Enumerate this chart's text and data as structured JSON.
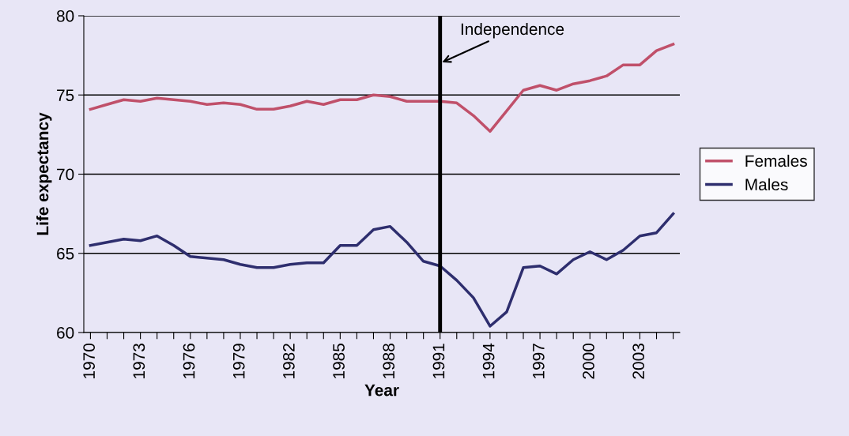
{
  "chart_data": {
    "type": "line",
    "xlabel": "Year",
    "ylabel": "Life expectancy",
    "x": [
      1970,
      1971,
      1972,
      1973,
      1974,
      1975,
      1976,
      1977,
      1978,
      1979,
      1980,
      1981,
      1982,
      1983,
      1984,
      1985,
      1986,
      1987,
      1988,
      1989,
      1990,
      1991,
      1992,
      1993,
      1994,
      1995,
      1996,
      1997,
      1998,
      1999,
      2000,
      2001,
      2002,
      2003,
      2004,
      2005
    ],
    "series": [
      {
        "name": "Females",
        "color": "#c0506a",
        "values": [
          74.1,
          74.4,
          74.7,
          74.6,
          74.8,
          74.7,
          74.6,
          74.4,
          74.5,
          74.4,
          74.1,
          74.1,
          74.3,
          74.6,
          74.4,
          74.7,
          74.7,
          75.0,
          74.9,
          74.6,
          74.6,
          74.6,
          74.5,
          73.7,
          72.7,
          74.0,
          75.3,
          75.6,
          75.3,
          75.7,
          75.9,
          76.2,
          76.9,
          76.9,
          77.8,
          78.2
        ]
      },
      {
        "name": "Males",
        "color": "#2e2e6e",
        "values": [
          65.5,
          65.7,
          65.9,
          65.8,
          66.1,
          65.5,
          64.8,
          64.7,
          64.6,
          64.3,
          64.1,
          64.1,
          64.3,
          64.4,
          64.4,
          65.5,
          65.5,
          66.5,
          66.7,
          65.7,
          64.5,
          64.2,
          63.3,
          62.2,
          60.4,
          61.3,
          64.1,
          64.2,
          63.7,
          64.6,
          65.1,
          64.6,
          65.2,
          66.1,
          66.3,
          67.5
        ]
      }
    ],
    "xlim": [
      1969.6,
      2005.4
    ],
    "xticks": [
      1970,
      {
        "value": 1971,
        "label": null
      },
      {
        "value": 1972,
        "label": null
      },
      1973,
      {
        "value": 1974,
        "label": null
      },
      {
        "value": 1975,
        "label": null
      },
      1976,
      {
        "value": 1977,
        "label": null
      },
      {
        "value": 1978,
        "label": null
      },
      1979,
      {
        "value": 1980,
        "label": null
      },
      {
        "value": 1981,
        "label": null
      },
      1982,
      {
        "value": 1983,
        "label": null
      },
      {
        "value": 1984,
        "label": null
      },
      1985,
      {
        "value": 1986,
        "label": null
      },
      {
        "value": 1987,
        "label": null
      },
      1988,
      {
        "value": 1989,
        "label": null
      },
      {
        "value": 1990,
        "label": null
      },
      1991,
      {
        "value": 1992,
        "label": null
      },
      {
        "value": 1993,
        "label": null
      },
      1994,
      {
        "value": 1995,
        "label": null
      },
      {
        "value": 1996,
        "label": null
      },
      1997,
      {
        "value": 1998,
        "label": null
      },
      {
        "value": 1999,
        "label": null
      },
      2000,
      {
        "value": 2001,
        "label": null
      },
      {
        "value": 2002,
        "label": null
      },
      2003,
      {
        "value": 2004,
        "label": null
      },
      {
        "value": 2005,
        "label": null
      }
    ],
    "ylim": [
      60,
      80
    ],
    "yticks": [
      60,
      65,
      70,
      75,
      80
    ],
    "grid": "y",
    "legend": "right",
    "ref_lines": [
      {
        "axis": "x",
        "value": 1991,
        "label": "Independence",
        "color": "#000000"
      }
    ]
  }
}
